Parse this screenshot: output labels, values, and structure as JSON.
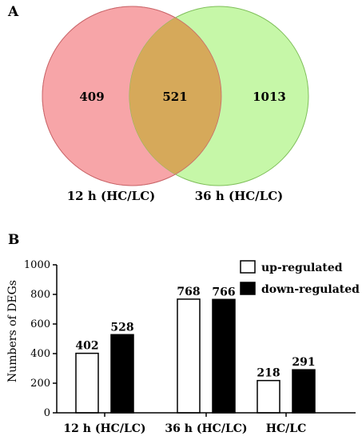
{
  "panel_a": {
    "letter": "A",
    "venn": {
      "sets": [
        {
          "label": "12 h (HC/LC)",
          "color": "#f7a5a8"
        },
        {
          "label": "36 h (HC/LC)",
          "color": "#c6f7a8"
        }
      ],
      "overlap_color": "#d6a95a",
      "counts": {
        "only_12h": "409",
        "both": "521",
        "only_36h": "1013"
      }
    }
  },
  "panel_b": {
    "letter": "B"
  },
  "chart_data": [
    {
      "type": "venn",
      "sets": [
        "12 h (HC/LC)",
        "36 h (HC/LC)"
      ],
      "values": {
        "12 h (HC/LC) only": 409,
        "both": 521,
        "36 h (HC/LC) only": 1013
      }
    },
    {
      "type": "bar",
      "categories": [
        "12 h (HC/LC)",
        "36 h (HC/LC)",
        "HC/LC"
      ],
      "series": [
        {
          "name": "up-regulated",
          "values": [
            402,
            768,
            218
          ],
          "color": "#ffffff"
        },
        {
          "name": "down-regulated",
          "values": [
            528,
            766,
            291
          ],
          "color": "#000000"
        }
      ],
      "ylabel": "Numbers of DEGs",
      "yticks": [
        "0",
        "200",
        "400",
        "600",
        "800",
        "1000"
      ],
      "ylim": [
        0,
        1000
      ],
      "legend": "top-right",
      "grid": false
    }
  ]
}
